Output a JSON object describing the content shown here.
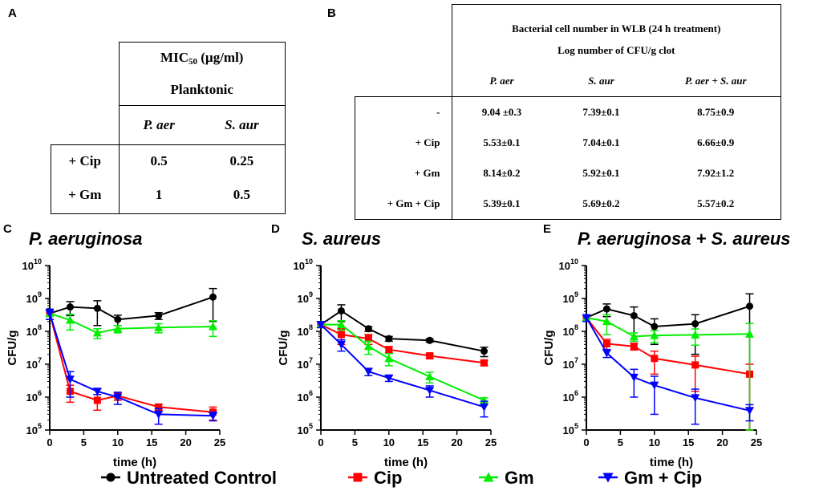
{
  "panel_labels": {
    "a": "A",
    "b": "B",
    "c": "C",
    "d": "D",
    "e": "E"
  },
  "table_a": {
    "header_main": "MIC",
    "header_sub": "50",
    "header_unit": " (µg/ml)",
    "header_line2": "Planktonic",
    "col_headers": [
      "P. aer",
      "S. aur"
    ],
    "rows": [
      {
        "label": "+  Cip",
        "values": [
          "0.5",
          "0.25"
        ]
      },
      {
        "label": "+  Gm",
        "values": [
          "1",
          "0.5"
        ]
      }
    ]
  },
  "table_b": {
    "header_line1": "Bacterial cell number in WLB (24 h treatment)",
    "header_line2": "Log number of CFU/g clot",
    "col_headers": [
      "P. aer",
      "S. aur",
      "P. aer + S. aur"
    ],
    "rows": [
      {
        "label": "-",
        "values": [
          "9.04 ±0.3",
          "7.39±0.1",
          "8.75±0.9"
        ]
      },
      {
        "label": "+ Cip",
        "values": [
          "5.53±0.1",
          "7.04±0.1",
          "6.66±0.9"
        ]
      },
      {
        "label": "+ Gm",
        "values": [
          "8.14±0.2",
          "5.92±0.1",
          "7.92±1.2"
        ]
      },
      {
        "label": "+ Gm + Cip",
        "values": [
          "5.39±0.1",
          "5.69±0.2",
          "5.57±0.2"
        ]
      }
    ]
  },
  "legend": {
    "items": [
      {
        "label": "Untreated Control",
        "color": "#000000",
        "marker": "circle"
      },
      {
        "label": "Cip",
        "color": "#ff0000",
        "marker": "square"
      },
      {
        "label": "Gm",
        "color": "#00ee00",
        "marker": "triangle-up"
      },
      {
        "label": "Gm + Cip",
        "color": "#0000ff",
        "marker": "triangle-down"
      }
    ]
  },
  "chart_data": [
    {
      "type": "line",
      "title": "P. aeruginosa",
      "xlabel": "time (h)",
      "ylabel": "CFU/g",
      "xlim": [
        0,
        25
      ],
      "xticks": [
        0,
        5,
        10,
        15,
        20,
        25
      ],
      "ylog": true,
      "ylim_exp": [
        5,
        10
      ],
      "yticks_exp": [
        5,
        6,
        7,
        8,
        9,
        10
      ],
      "x": [
        0,
        3,
        7,
        10,
        16,
        24
      ],
      "series": [
        {
          "name": "Untreated Control",
          "values": [
            350000000.0,
            550000000.0,
            500000000.0,
            230000000.0,
            300000000.0,
            1100000000.0
          ],
          "err": [
            120000000.0,
            250000000.0,
            350000000.0,
            80000000.0,
            70000000.0,
            900000000.0
          ]
        },
        {
          "name": "Cip",
          "values": [
            350000000.0,
            1500000.0,
            800000.0,
            1100000.0,
            500000.0,
            350000.0
          ],
          "err": [
            120000000.0,
            800000.0,
            400000.0,
            300000.0,
            100000.0,
            150000.0
          ]
        },
        {
          "name": "Gm",
          "values": [
            350000000.0,
            220000000.0,
            90000000.0,
            120000000.0,
            130000000.0,
            140000000.0
          ],
          "err": [
            120000000.0,
            110000000.0,
            30000000.0,
            30000000.0,
            40000000.0,
            70000000.0
          ]
        },
        {
          "name": "Gm + Cip",
          "values": [
            350000000.0,
            3500000.0,
            1500000.0,
            1000000.0,
            300000.0,
            270000.0
          ],
          "err": [
            120000000.0,
            2500000.0,
            300000.0,
            400000.0,
            150000.0,
            80000.0
          ]
        }
      ]
    },
    {
      "type": "line",
      "title": "S. aureus",
      "xlabel": "time (h)",
      "ylabel": "CFU/g",
      "xlim": [
        0,
        25
      ],
      "xticks": [
        0,
        5,
        10,
        15,
        20,
        25
      ],
      "ylog": true,
      "ylim_exp": [
        5,
        10
      ],
      "yticks_exp": [
        5,
        6,
        7,
        8,
        9,
        10
      ],
      "x": [
        0,
        3,
        7,
        10,
        16,
        24
      ],
      "series": [
        {
          "name": "Untreated Control",
          "values": [
            160000000.0,
            420000000.0,
            120000000.0,
            60000000.0,
            53000000.0,
            25000000.0
          ],
          "err": [
            30000000.0,
            220000000.0,
            20000000.0,
            10000000.0,
            6000000.0,
            8000000.0
          ]
        },
        {
          "name": "Cip",
          "values": [
            160000000.0,
            80000000.0,
            60000000.0,
            28000000.0,
            18000000.0,
            11000000.0
          ],
          "err": [
            30000000.0,
            40000000.0,
            20000000.0,
            6000000.0,
            3000000.0,
            2000000.0
          ]
        },
        {
          "name": "Gm",
          "values": [
            160000000.0,
            160000000.0,
            35000000.0,
            15000000.0,
            4200000.0,
            800000.0
          ],
          "err": [
            30000000.0,
            50000000.0,
            15000000.0,
            6000000.0,
            1500000.0,
            150000.0
          ]
        },
        {
          "name": "Gm + Cip",
          "values": [
            160000000.0,
            40000000.0,
            6000000.0,
            3800000.0,
            1600000.0,
            500000.0
          ],
          "err": [
            30000000.0,
            15000000.0,
            1500000.0,
            800000.0,
            600000.0,
            250000.0
          ]
        }
      ]
    },
    {
      "type": "line",
      "title": "P. aeruginosa + S. aureus",
      "xlabel": "time (h)",
      "ylabel": "CFU/g",
      "xlim": [
        0,
        25
      ],
      "xticks": [
        0,
        5,
        10,
        15,
        20,
        25
      ],
      "ylog": true,
      "ylim_exp": [
        5,
        10
      ],
      "yticks_exp": [
        5,
        6,
        7,
        8,
        9,
        10
      ],
      "x": [
        0,
        3,
        7,
        10,
        16,
        24
      ],
      "series": [
        {
          "name": "Untreated Control",
          "values": [
            260000000.0,
            480000000.0,
            300000000.0,
            140000000.0,
            170000000.0,
            580000000.0
          ],
          "err": [
            60000000.0,
            200000000.0,
            250000000.0,
            100000000.0,
            150000000.0,
            800000000.0
          ]
        },
        {
          "name": "Cip",
          "values": [
            260000000.0,
            42000000.0,
            35000000.0,
            15000000.0,
            9500000.0,
            5000000.0
          ],
          "err": [
            60000000.0,
            15000000.0,
            8000000.0,
            10000000.0,
            8000000.0,
            5000000.0
          ]
        },
        {
          "name": "Gm",
          "values": [
            260000000.0,
            200000000.0,
            70000000.0,
            75000000.0,
            78000000.0,
            83000000.0
          ],
          "err": [
            60000000.0,
            120000000.0,
            20000000.0,
            30000000.0,
            40000000.0,
            90000000.0
          ]
        },
        {
          "name": "Gm + Cip",
          "values": [
            260000000.0,
            22000000.0,
            4000000.0,
            2300000.0,
            950000.0,
            390000.0
          ],
          "err": [
            60000000.0,
            6000000.0,
            3000000.0,
            2000000.0,
            800000.0,
            200000.0
          ]
        }
      ]
    }
  ]
}
